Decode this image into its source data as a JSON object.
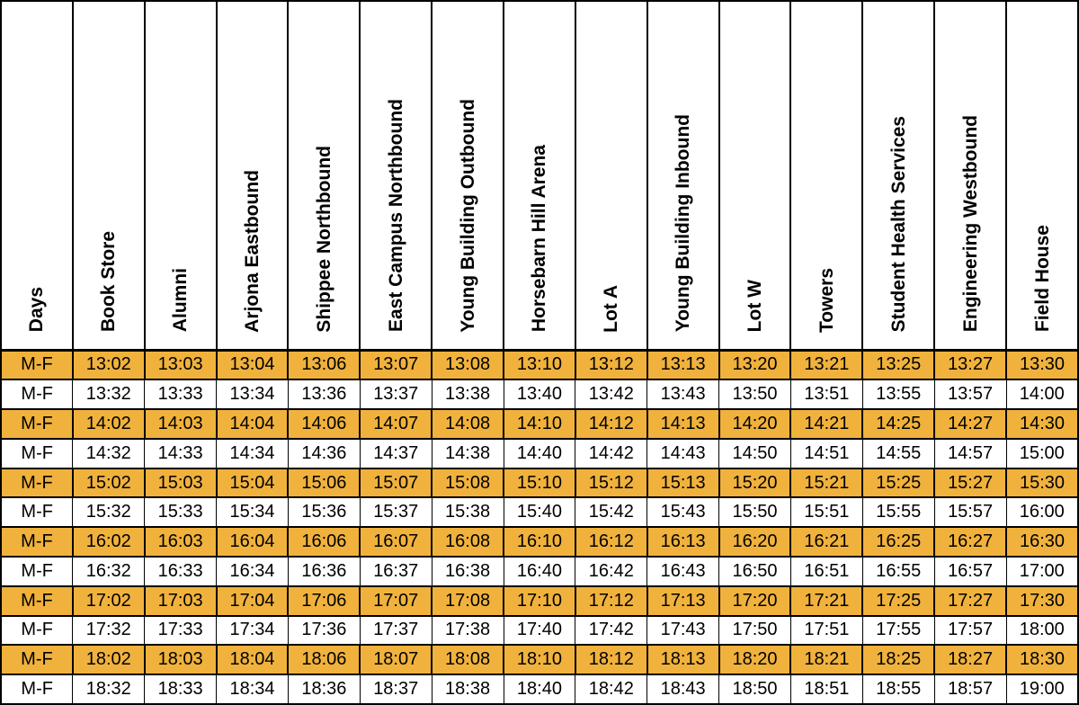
{
  "table": {
    "columns": [
      "Days",
      "Book Store",
      "Alumni",
      "Arjona Eastbound",
      "Shippee Northbound",
      "East Campus Northbound",
      "Young Building Outbound",
      "Horsebarn Hill Arena",
      "Lot A",
      "Young Building Inbound",
      "Lot W",
      "Towers",
      "Student Health Services",
      "Engineering Westbound",
      "Field House"
    ],
    "rows": [
      {
        "days": "M-F",
        "highlight": true,
        "times": [
          "13:02",
          "13:03",
          "13:04",
          "13:06",
          "13:07",
          "13:08",
          "13:10",
          "13:12",
          "13:13",
          "13:20",
          "13:21",
          "13:25",
          "13:27",
          "13:30"
        ]
      },
      {
        "days": "M-F",
        "highlight": false,
        "times": [
          "13:32",
          "13:33",
          "13:34",
          "13:36",
          "13:37",
          "13:38",
          "13:40",
          "13:42",
          "13:43",
          "13:50",
          "13:51",
          "13:55",
          "13:57",
          "14:00"
        ]
      },
      {
        "days": "M-F",
        "highlight": true,
        "times": [
          "14:02",
          "14:03",
          "14:04",
          "14:06",
          "14:07",
          "14:08",
          "14:10",
          "14:12",
          "14:13",
          "14:20",
          "14:21",
          "14:25",
          "14:27",
          "14:30"
        ]
      },
      {
        "days": "M-F",
        "highlight": false,
        "times": [
          "14:32",
          "14:33",
          "14:34",
          "14:36",
          "14:37",
          "14:38",
          "14:40",
          "14:42",
          "14:43",
          "14:50",
          "14:51",
          "14:55",
          "14:57",
          "15:00"
        ]
      },
      {
        "days": "M-F",
        "highlight": true,
        "times": [
          "15:02",
          "15:03",
          "15:04",
          "15:06",
          "15:07",
          "15:08",
          "15:10",
          "15:12",
          "15:13",
          "15:20",
          "15:21",
          "15:25",
          "15:27",
          "15:30"
        ]
      },
      {
        "days": "M-F",
        "highlight": false,
        "times": [
          "15:32",
          "15:33",
          "15:34",
          "15:36",
          "15:37",
          "15:38",
          "15:40",
          "15:42",
          "15:43",
          "15:50",
          "15:51",
          "15:55",
          "15:57",
          "16:00"
        ]
      },
      {
        "days": "M-F",
        "highlight": true,
        "times": [
          "16:02",
          "16:03",
          "16:04",
          "16:06",
          "16:07",
          "16:08",
          "16:10",
          "16:12",
          "16:13",
          "16:20",
          "16:21",
          "16:25",
          "16:27",
          "16:30"
        ]
      },
      {
        "days": "M-F",
        "highlight": false,
        "times": [
          "16:32",
          "16:33",
          "16:34",
          "16:36",
          "16:37",
          "16:38",
          "16:40",
          "16:42",
          "16:43",
          "16:50",
          "16:51",
          "16:55",
          "16:57",
          "17:00"
        ]
      },
      {
        "days": "M-F",
        "highlight": true,
        "times": [
          "17:02",
          "17:03",
          "17:04",
          "17:06",
          "17:07",
          "17:08",
          "17:10",
          "17:12",
          "17:13",
          "17:20",
          "17:21",
          "17:25",
          "17:27",
          "17:30"
        ]
      },
      {
        "days": "M-F",
        "highlight": false,
        "times": [
          "17:32",
          "17:33",
          "17:34",
          "17:36",
          "17:37",
          "17:38",
          "17:40",
          "17:42",
          "17:43",
          "17:50",
          "17:51",
          "17:55",
          "17:57",
          "18:00"
        ]
      },
      {
        "days": "M-F",
        "highlight": true,
        "times": [
          "18:02",
          "18:03",
          "18:04",
          "18:06",
          "18:07",
          "18:08",
          "18:10",
          "18:12",
          "18:13",
          "18:20",
          "18:21",
          "18:25",
          "18:27",
          "18:30"
        ]
      },
      {
        "days": "M-F",
        "highlight": false,
        "times": [
          "18:32",
          "18:33",
          "18:34",
          "18:36",
          "18:37",
          "18:38",
          "18:40",
          "18:42",
          "18:43",
          "18:50",
          "18:51",
          "18:55",
          "18:57",
          "19:00"
        ]
      }
    ],
    "colors": {
      "highlight": "#F0B23C",
      "border": "#000000",
      "text": "#000000",
      "background": "#FFFFFF"
    }
  }
}
